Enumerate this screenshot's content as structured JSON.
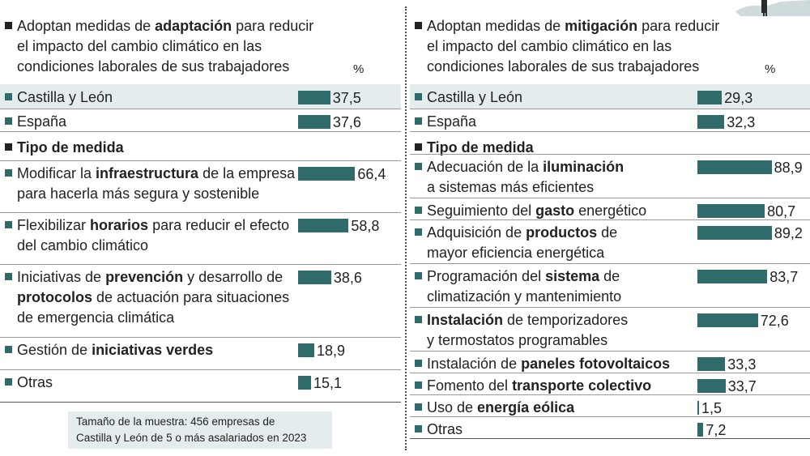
{
  "left": {
    "title": [
      [
        {
          "t": "Adoptan medidas de "
        },
        {
          "t": "adaptación",
          "b": true
        },
        {
          "t": " para reducir"
        }
      ],
      [
        {
          "t": "el impacto del cambio climático en las"
        }
      ],
      [
        {
          "t": "condiciones laborales de sus trabajadores"
        }
      ]
    ],
    "unit": "%",
    "note": [
      "Tamaño de la muestra: 456 empresas de",
      "Castilla y León de 5 o más asalariados en 2023"
    ]
  },
  "right": {
    "title": [
      [
        {
          "t": "Adoptan medidas de "
        },
        {
          "t": "mitigación",
          "b": true
        },
        {
          "t": " para reducir"
        }
      ],
      [
        {
          "t": "el impacto del cambio climático en las"
        }
      ],
      [
        {
          "t": "condiciones laborales de sus trabajadores"
        }
      ]
    ],
    "unit": "%"
  },
  "chart_data": [
    {
      "type": "bar",
      "orientation": "horizontal",
      "unit": "%",
      "rows": [
        {
          "label": [
            [
              {
                "t": "Castilla y León"
              }
            ]
          ],
          "value": 37.5,
          "display": "37,5",
          "highlight": true
        },
        {
          "label": [
            [
              {
                "t": "España"
              }
            ]
          ],
          "value": 37.6,
          "display": "37,6"
        },
        {
          "section": "Tipo de medida"
        },
        {
          "label": [
            [
              {
                "t": "Modificar la "
              },
              {
                "t": "infraestructura",
                "b": true
              },
              {
                "t": " de la empresa"
              }
            ],
            [
              {
                "t": "para hacerla más segura y sostenible"
              }
            ]
          ],
          "value": 66.4,
          "display": "66,4"
        },
        {
          "label": [
            [
              {
                "t": "Flexibilizar "
              },
              {
                "t": "horarios",
                "b": true
              },
              {
                "t": " para reducir el efecto"
              }
            ],
            [
              {
                "t": "del cambio climático"
              }
            ]
          ],
          "value": 58.8,
          "display": "58,8"
        },
        {
          "label": [
            [
              {
                "t": "Iniciativas de "
              },
              {
                "t": "prevención",
                "b": true
              },
              {
                "t": " y desarrollo de"
              }
            ],
            [
              {
                "t": "protocolos",
                "b": true
              },
              {
                "t": " de actuación para situaciones"
              }
            ],
            [
              {
                "t": "de emergencia climática"
              }
            ]
          ],
          "value": 38.6,
          "display": "38,6"
        },
        {
          "label": [
            [
              {
                "t": "Gestión de "
              },
              {
                "t": "iniciativas verdes",
                "b": true
              }
            ]
          ],
          "value": 18.9,
          "display": "18,9"
        },
        {
          "label": [
            [
              {
                "t": "Otras"
              }
            ]
          ],
          "value": 15.1,
          "display": "15,1"
        }
      ]
    },
    {
      "type": "bar",
      "orientation": "horizontal",
      "unit": "%",
      "rows": [
        {
          "label": [
            [
              {
                "t": "Castilla y León"
              }
            ]
          ],
          "value": 29.3,
          "display": "29,3",
          "highlight": true
        },
        {
          "label": [
            [
              {
                "t": "España"
              }
            ]
          ],
          "value": 32.3,
          "display": "32,3"
        },
        {
          "section": "Tipo de medida"
        },
        {
          "label": [
            [
              {
                "t": "Adecuación de la "
              },
              {
                "t": "iluminación",
                "b": true
              }
            ],
            [
              {
                "t": "a sistemas más eficientes"
              }
            ]
          ],
          "value": 88.9,
          "display": "88,9"
        },
        {
          "label": [
            [
              {
                "t": "Seguimiento del "
              },
              {
                "t": "gasto",
                "b": true
              },
              {
                "t": " energético"
              }
            ]
          ],
          "value": 80.7,
          "display": "80,7"
        },
        {
          "label": [
            [
              {
                "t": "Adquisición de "
              },
              {
                "t": "productos",
                "b": true
              },
              {
                "t": " de"
              }
            ],
            [
              {
                "t": "mayor eficiencia energética"
              }
            ]
          ],
          "value": 89.2,
          "display": "89,2"
        },
        {
          "label": [
            [
              {
                "t": "Programación del "
              },
              {
                "t": "sistema",
                "b": true
              },
              {
                "t": " de"
              }
            ],
            [
              {
                "t": "climatización y mantenimiento"
              }
            ]
          ],
          "value": 83.7,
          "display": "83,7"
        },
        {
          "label": [
            [
              {
                "t": "Instalación",
                "b": true
              },
              {
                "t": " de temporizadores"
              }
            ],
            [
              {
                "t": "y termostatos programables"
              }
            ]
          ],
          "value": 72.6,
          "display": "72,6"
        },
        {
          "label": [
            [
              {
                "t": "Instalación de "
              },
              {
                "t": "paneles fotovoltaicos",
                "b": true
              }
            ]
          ],
          "value": 33.3,
          "display": "33,3"
        },
        {
          "label": [
            [
              {
                "t": "Fomento del "
              },
              {
                "t": "transporte colectivo",
                "b": true
              }
            ]
          ],
          "value": 33.7,
          "display": "33,7"
        },
        {
          "label": [
            [
              {
                "t": "Uso de "
              },
              {
                "t": "energía eólica",
                "b": true
              }
            ]
          ],
          "value": 1.5,
          "display": "1,5"
        },
        {
          "label": [
            [
              {
                "t": "Otras"
              }
            ]
          ],
          "value": 7.2,
          "display": "7,2"
        }
      ]
    }
  ]
}
